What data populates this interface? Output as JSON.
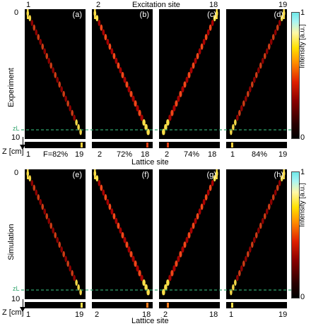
{
  "top": {
    "header": "Excitation site",
    "row_label": "Experiment",
    "panels": [
      {
        "label": "(a)",
        "site_left": "1",
        "site_right": "",
        "strip_left": "1",
        "strip_mid": "F=82%",
        "strip_right": "19"
      },
      {
        "label": "(b)",
        "site_left": "2",
        "site_right": "",
        "strip_left": "2",
        "strip_mid": "72%",
        "strip_right": "18"
      },
      {
        "label": "(c)",
        "site_left": "",
        "site_right": "18",
        "strip_left": "2",
        "strip_mid": "74%",
        "strip_right": "18"
      },
      {
        "label": "(d)",
        "site_left": "",
        "site_right": "19",
        "strip_left": "1",
        "strip_mid": "84%",
        "strip_right": "19"
      }
    ],
    "z_marker": "zL",
    "footer": "Lattice site"
  },
  "bottom": {
    "row_label": "Simulation",
    "panels": [
      {
        "label": "(e)",
        "strip_left": "1",
        "strip_right": "19"
      },
      {
        "label": "(f)",
        "strip_left": "2",
        "strip_right": "18"
      },
      {
        "label": "(g)",
        "strip_left": "2",
        "strip_right": "18"
      },
      {
        "label": "(h)",
        "strip_left": "1",
        "strip_right": "19"
      }
    ],
    "z_marker": "zL",
    "footer": "Lattice site"
  },
  "axis": {
    "tick_0": "0",
    "tick_10": "10",
    "z_label": "Z [cm]"
  },
  "colorbar": {
    "max": "1",
    "min": "0",
    "label": "Intensity [a.u.]"
  },
  "colors": {
    "accent": "#2ea36b",
    "beam_hot": "#ffe14a",
    "beam_warm": "#ff4a1a",
    "beam_cool": "#b00000"
  },
  "beams": [
    {
      "start": 0.05,
      "end": 0.92,
      "pattern": "line"
    },
    {
      "start": 0.05,
      "end": 0.92,
      "pattern": "X"
    },
    {
      "start": 0.95,
      "end": 0.08,
      "pattern": "X"
    },
    {
      "start": 0.95,
      "end": 0.08,
      "pattern": "line"
    }
  ]
}
